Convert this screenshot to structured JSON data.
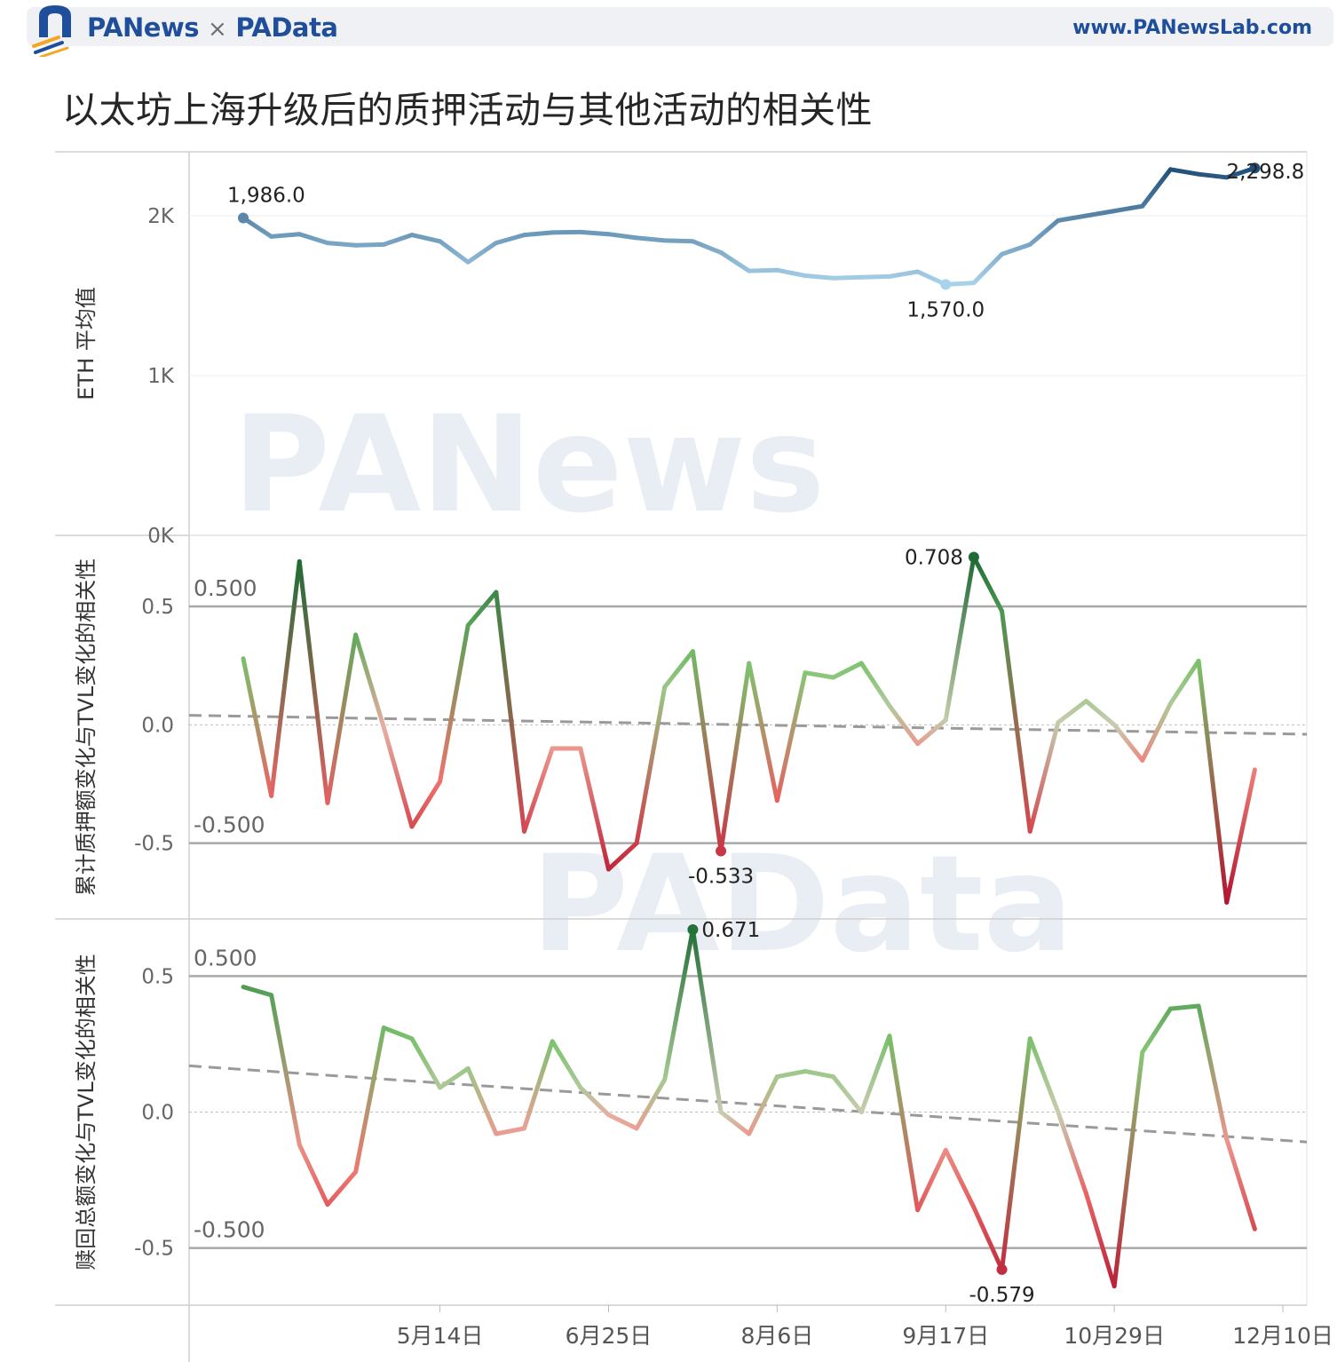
{
  "header": {
    "brand_left": "PANews",
    "brand_sep": "×",
    "brand_right": "PAData",
    "site_url": "www.PANewsLab.com",
    "accent": "#1f4e9a"
  },
  "title": "以太坊上海升级后的质押活动与其他活动的相关性",
  "watermarks": [
    "PANews",
    "PAData"
  ],
  "x_axis": {
    "tick_labels": [
      "5月14日",
      "6月25日",
      "8月6日",
      "9月17日",
      "10月29日",
      "12月10日"
    ],
    "tick_positions": [
      7,
      13,
      19,
      25,
      31,
      37
    ]
  },
  "chart_data": [
    {
      "type": "line",
      "ylabel": "ETH 平均值",
      "ylim": [
        0,
        2400
      ],
      "yticks": [
        {
          "v": 0,
          "label": "0K"
        },
        {
          "v": 1000,
          "label": "1K"
        },
        {
          "v": 2000,
          "label": "2K"
        }
      ],
      "color_low": "#a9d3ea",
      "color_high": "#1f4e7a",
      "values": [
        1986,
        1870,
        1885,
        1830,
        1815,
        1820,
        1880,
        1840,
        1710,
        1830,
        1880,
        1895,
        1898,
        1885,
        1862,
        1845,
        1840,
        1770,
        1655,
        1660,
        1625,
        1610,
        1615,
        1620,
        1650,
        1570,
        1580,
        1760,
        1820,
        1970,
        2000,
        2030,
        2060,
        2290,
        2260,
        2240,
        2298.8
      ],
      "annotations": [
        {
          "index": 0,
          "label": "1,986.0",
          "pos": "above"
        },
        {
          "index": 25,
          "label": "1,570.0",
          "pos": "below"
        },
        {
          "index": 36,
          "label": "2,298.8",
          "pos": "above"
        }
      ]
    },
    {
      "type": "line",
      "ylabel": "累计质押额变化与TVL变化的相关性",
      "ylim": [
        -0.82,
        0.8
      ],
      "yticks": [
        {
          "v": -0.5,
          "label": "-0.5"
        },
        {
          "v": 0,
          "label": "0.0"
        },
        {
          "v": 0.5,
          "label": "0.5"
        }
      ],
      "reference_lines": [
        {
          "v": 0.5,
          "label": "0.500"
        },
        {
          "v": -0.5,
          "label": "-0.500"
        }
      ],
      "trend_line": [
        0.04,
        -0.04
      ],
      "values": [
        0.28,
        -0.3,
        0.69,
        -0.33,
        0.38,
        -0.01,
        -0.43,
        -0.24,
        0.42,
        0.56,
        -0.45,
        -0.1,
        -0.1,
        -0.61,
        -0.5,
        0.16,
        0.31,
        -0.533,
        0.26,
        -0.32,
        0.22,
        0.2,
        0.26,
        0.08,
        -0.08,
        0.02,
        0.708,
        0.48,
        -0.45,
        0.01,
        0.1,
        0.0,
        -0.15,
        0.09,
        0.27,
        -0.75,
        -0.19
      ],
      "annotations": [
        {
          "index": 26,
          "label": "0.708",
          "pos": "left"
        },
        {
          "index": 17,
          "label": "-0.533",
          "pos": "below"
        }
      ]
    },
    {
      "type": "line",
      "ylabel": "赎回总额变化与TVL变化的相关性",
      "ylim": [
        -0.71,
        0.71
      ],
      "yticks": [
        {
          "v": -0.5,
          "label": "-0.5"
        },
        {
          "v": 0,
          "label": "0.0"
        },
        {
          "v": 0.5,
          "label": "0.5"
        }
      ],
      "reference_lines": [
        {
          "v": 0.5,
          "label": "0.500"
        },
        {
          "v": -0.5,
          "label": "-0.500"
        }
      ],
      "trend_line": [
        0.17,
        -0.11
      ],
      "values": [
        0.46,
        0.43,
        -0.12,
        -0.34,
        -0.22,
        0.31,
        0.27,
        0.09,
        0.16,
        -0.08,
        -0.06,
        0.26,
        0.09,
        -0.01,
        -0.06,
        0.12,
        0.671,
        0.0,
        -0.08,
        0.13,
        0.15,
        0.13,
        0.0,
        0.28,
        -0.36,
        -0.14,
        -0.35,
        -0.579,
        0.27,
        0.0,
        -0.3,
        -0.64,
        0.22,
        0.38,
        0.39,
        -0.1,
        -0.43
      ],
      "annotations": [
        {
          "index": 16,
          "label": "0.671",
          "pos": "right"
        },
        {
          "index": 27,
          "label": "-0.579",
          "pos": "below"
        }
      ]
    }
  ]
}
